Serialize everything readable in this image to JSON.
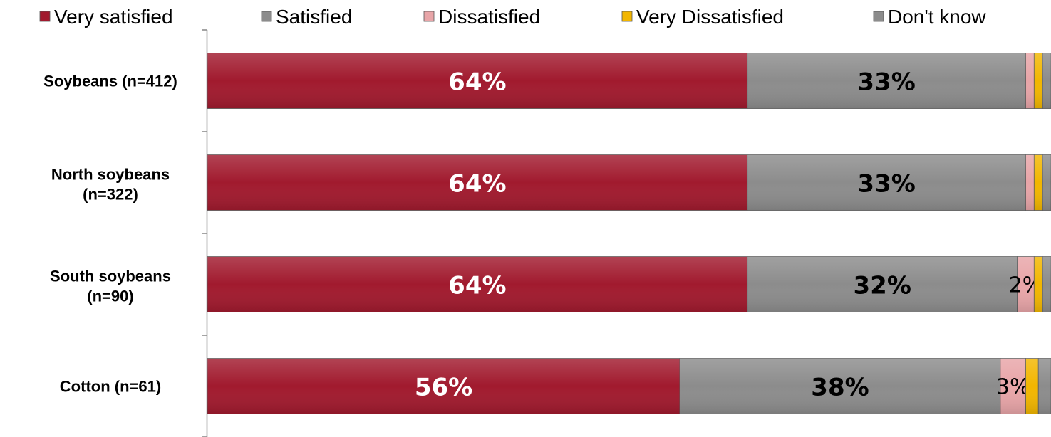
{
  "chart_data": {
    "type": "bar",
    "orientation": "horizontal",
    "stacked": true,
    "categories": [
      "Soybeans (n=412)",
      "North soybeans (n=322)",
      "South soybeans (n=90)",
      "Cotton (n=61)"
    ],
    "series": [
      {
        "name": "Very satisfied",
        "color": "#a11a2e",
        "values": [
          64,
          64,
          64,
          56
        ],
        "labels": [
          "64%",
          "64%",
          "64%",
          "56%"
        ]
      },
      {
        "name": "Satisfied",
        "color": "#8c8c8c",
        "values": [
          33,
          33,
          32,
          38
        ],
        "labels": [
          "33%",
          "33%",
          "32%",
          "38%"
        ]
      },
      {
        "name": "Dissatisfied",
        "color": "#e8a5a8",
        "values": [
          1,
          1,
          2,
          3
        ],
        "labels": [
          "",
          "",
          "2%",
          "3%"
        ]
      },
      {
        "name": "Very Dissatisfied",
        "color": "#f2b600",
        "values": [
          1,
          1,
          1,
          1.5
        ],
        "labels": [
          "",
          "",
          "",
          ""
        ]
      },
      {
        "name": "Don't know",
        "color": "#8c8c8c",
        "values": [
          1,
          1,
          1,
          1.5
        ],
        "labels": [
          "",
          "",
          "",
          ""
        ]
      }
    ],
    "xlim": [
      0,
      100
    ],
    "legend_position": "top",
    "grid": false
  }
}
